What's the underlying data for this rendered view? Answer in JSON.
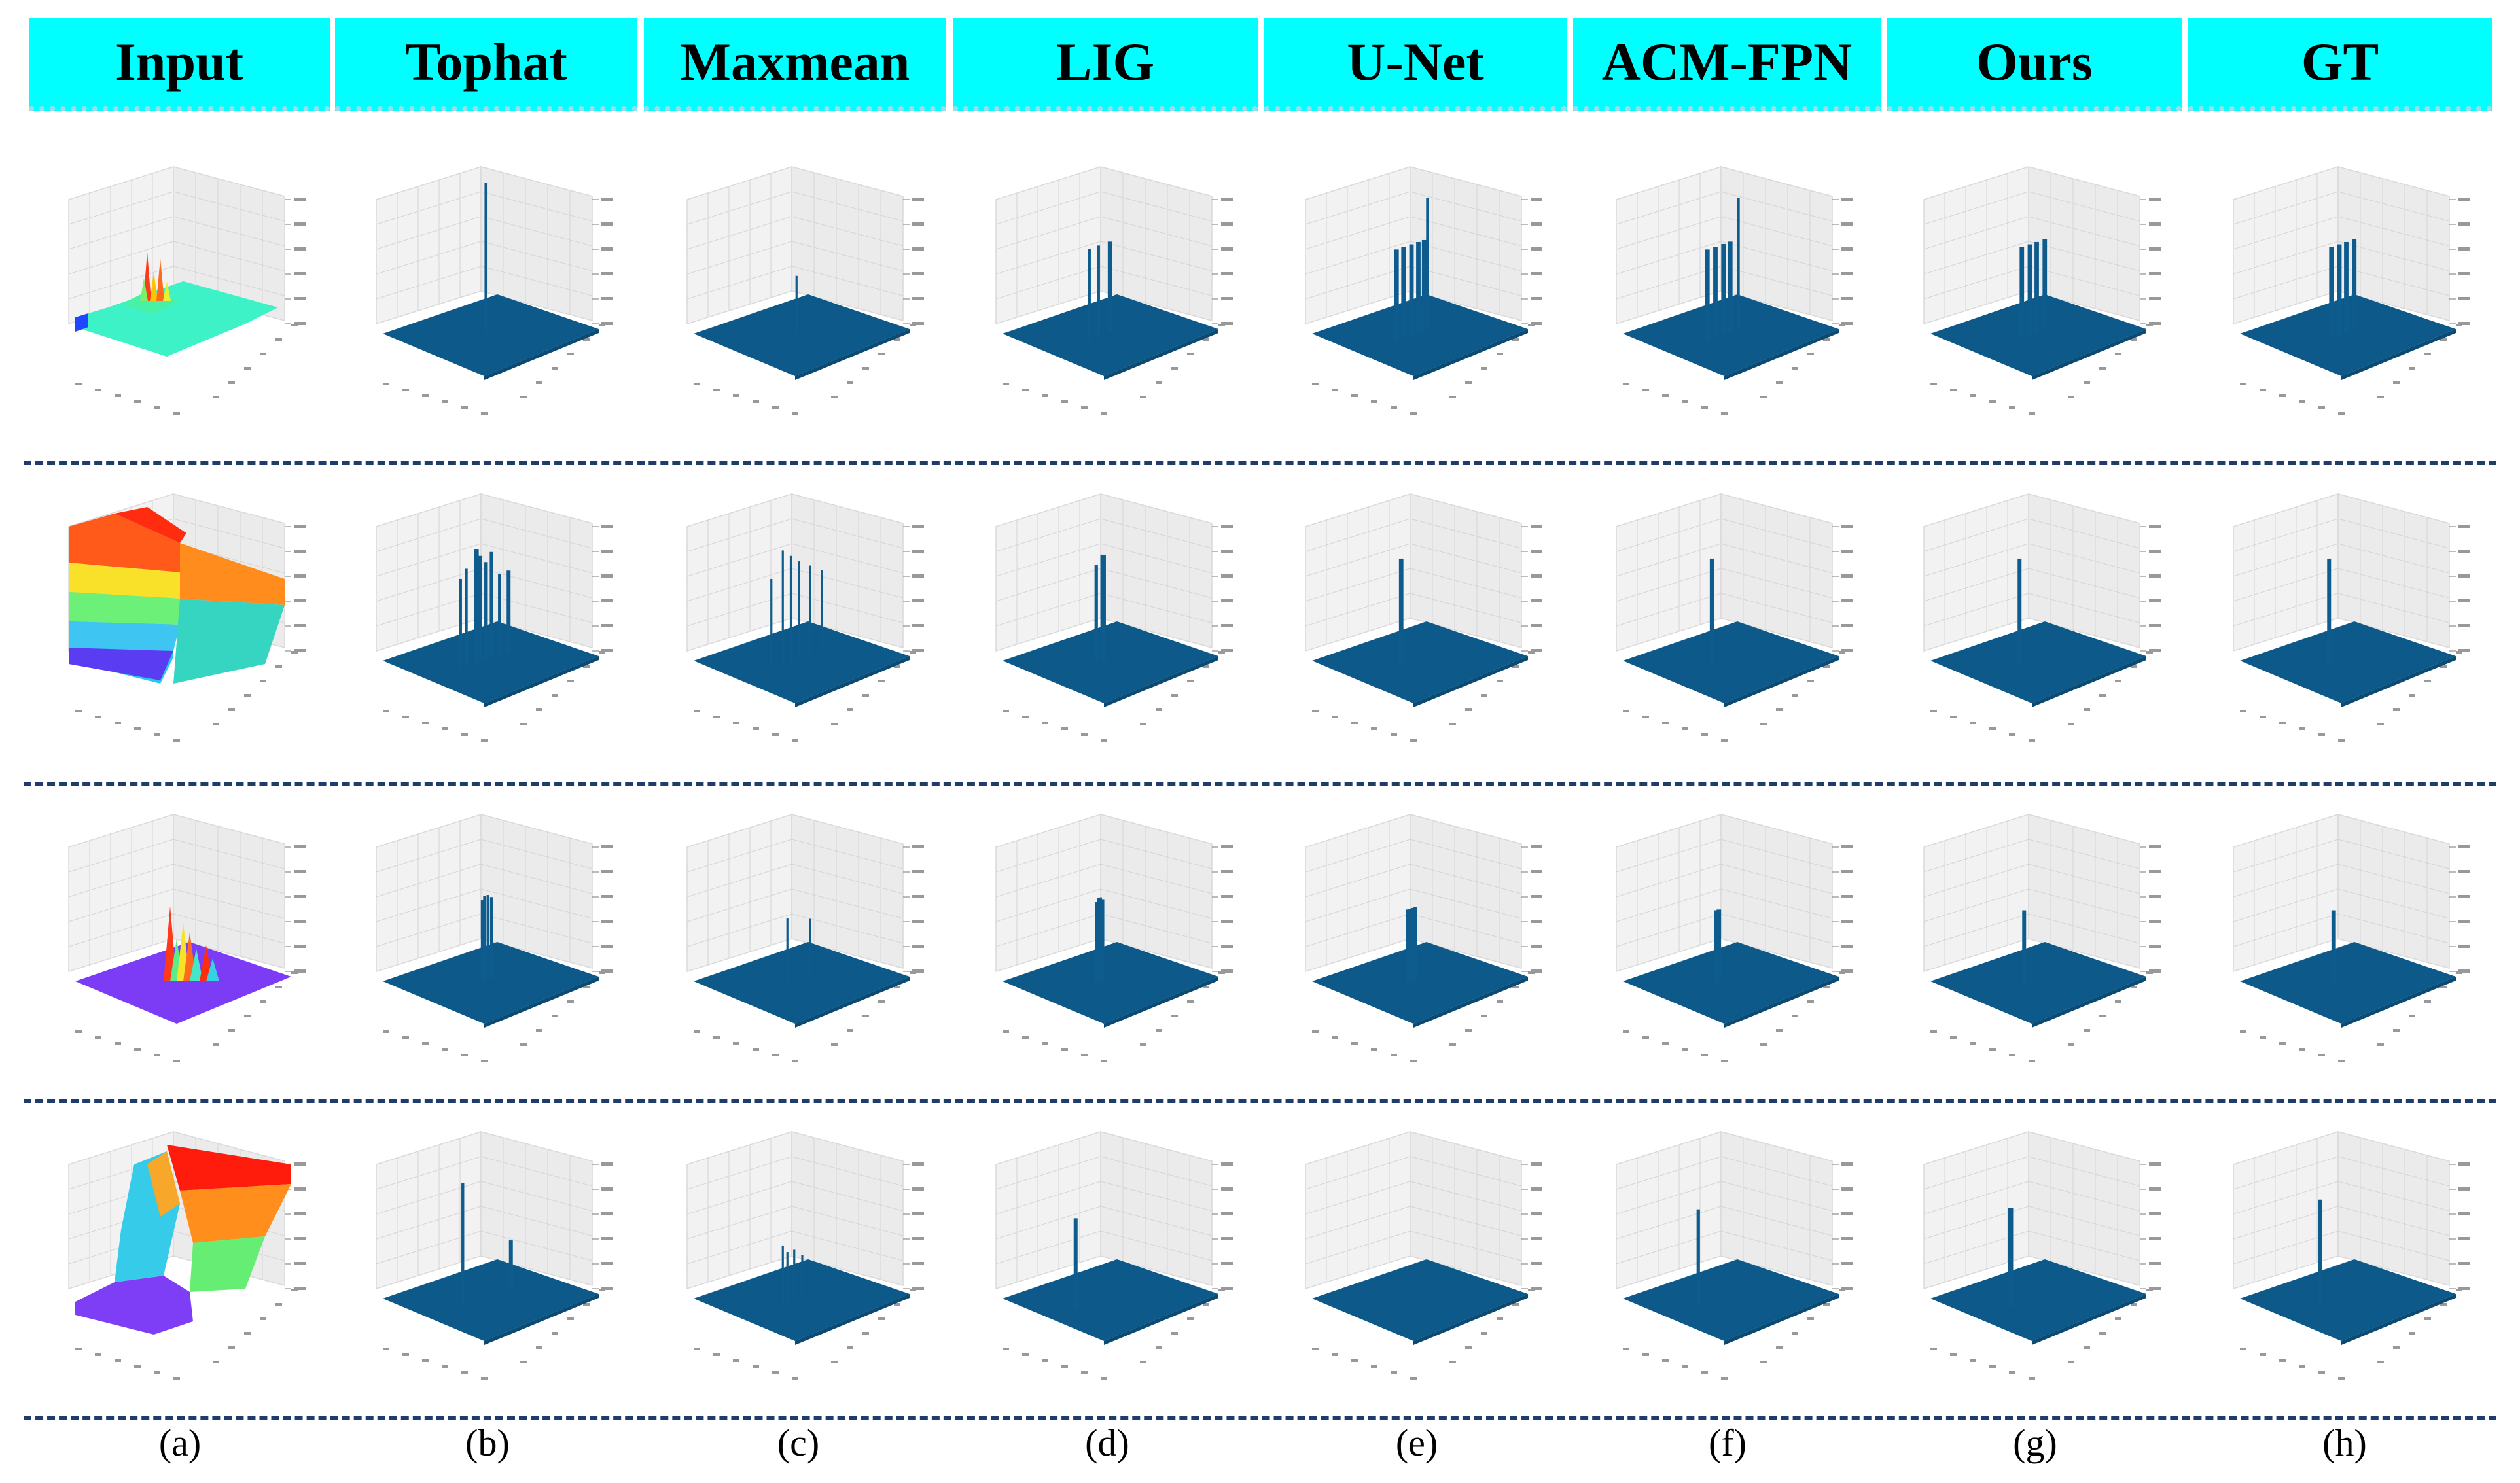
{
  "columns": [
    {
      "header": "Input",
      "label": "(a)"
    },
    {
      "header": "Tophat",
      "label": "(b)"
    },
    {
      "header": "Maxmean",
      "label": "(c)"
    },
    {
      "header": "LIG",
      "label": "(d)"
    },
    {
      "header": "U-Net",
      "label": "(e)"
    },
    {
      "header": "ACM-FPN",
      "label": "(f)"
    },
    {
      "header": "Ours",
      "label": "(g)"
    },
    {
      "header": "GT",
      "label": "(h)"
    }
  ],
  "colors": {
    "header_bg": "#00ffff",
    "plane": "#0d5a8a",
    "spike": "#0e5c8e",
    "separator": "#1f3c6e"
  },
  "rows": [
    {
      "input_style": "flat-with-central-peaks",
      "spikes": {
        "Tophat": [
          [
            0.5,
            0.92,
            0.2
          ]
        ],
        "Maxmean": [
          [
            0.5,
            0.35,
            0.15
          ]
        ],
        "LIG": [
          [
            0.36,
            0.55,
            0.3
          ],
          [
            0.44,
            0.55,
            0.3
          ],
          [
            0.54,
            0.55,
            0.6
          ]
        ],
        "U-Net": [
          [
            0.34,
            0.55,
            0.6
          ],
          [
            0.4,
            0.55,
            0.6
          ],
          [
            0.47,
            0.55,
            0.6
          ],
          [
            0.53,
            0.55,
            0.6
          ],
          [
            0.58,
            0.55,
            0.6
          ],
          [
            0.61,
            0.8,
            0.3
          ]
        ],
        "ACM-FPN": [
          [
            0.34,
            0.55,
            0.6
          ],
          [
            0.41,
            0.55,
            0.6
          ],
          [
            0.48,
            0.55,
            0.6
          ],
          [
            0.54,
            0.55,
            0.6
          ],
          [
            0.61,
            0.8,
            0.3
          ]
        ],
        "Ours": [
          [
            0.4,
            0.55,
            0.6
          ],
          [
            0.47,
            0.55,
            0.6
          ],
          [
            0.53,
            0.55,
            0.6
          ],
          [
            0.6,
            0.55,
            0.6
          ]
        ],
        "GT": [
          [
            0.4,
            0.55,
            0.6
          ],
          [
            0.47,
            0.55,
            0.6
          ],
          [
            0.53,
            0.55,
            0.6
          ],
          [
            0.6,
            0.55,
            0.6
          ]
        ]
      }
    },
    {
      "input_style": "rising-ridge",
      "spikes": {
        "Tophat": [
          [
            0.28,
            0.55,
            0.3
          ],
          [
            0.33,
            0.6,
            0.3
          ],
          [
            0.42,
            0.7,
            0.6
          ],
          [
            0.45,
            0.65,
            0.6
          ],
          [
            0.5,
            0.6,
            0.3
          ],
          [
            0.55,
            0.65,
            0.4
          ],
          [
            0.62,
            0.5,
            0.3
          ],
          [
            0.7,
            0.5,
            0.5
          ]
        ],
        "Maxmean": [
          [
            0.28,
            0.55,
            0.15
          ],
          [
            0.38,
            0.7,
            0.15
          ],
          [
            0.45,
            0.65,
            0.15
          ],
          [
            0.52,
            0.6,
            0.15
          ],
          [
            0.62,
            0.55,
            0.15
          ],
          [
            0.72,
            0.5,
            0.15
          ]
        ],
        "LIG": [
          [
            0.42,
            0.6,
            0.4
          ],
          [
            0.48,
            0.65,
            0.8
          ]
        ],
        "U-Net": [
          [
            0.38,
            0.65,
            0.6
          ]
        ],
        "ACM-FPN": [
          [
            0.38,
            0.65,
            0.6
          ]
        ],
        "Ours": [
          [
            0.38,
            0.65,
            0.5
          ]
        ],
        "GT": [
          [
            0.38,
            0.65,
            0.5
          ]
        ]
      }
    },
    {
      "input_style": "flat-with-cluster",
      "spikes": {
        "Tophat": [
          [
            0.47,
            0.5,
            0.3
          ],
          [
            0.49,
            0.52,
            0.3
          ],
          [
            0.52,
            0.52,
            0.3
          ],
          [
            0.55,
            0.5,
            0.3
          ]
        ],
        "Maxmean": [
          [
            0.42,
            0.4,
            0.15
          ],
          [
            0.62,
            0.35,
            0.15
          ]
        ],
        "LIG": [
          [
            0.42,
            0.5,
            0.2
          ],
          [
            0.44,
            0.52,
            0.2
          ],
          [
            0.46,
            0.52,
            0.2
          ],
          [
            0.48,
            0.5,
            0.2
          ]
        ],
        "U-Net": [
          [
            0.44,
            0.45,
            0.5
          ],
          [
            0.46,
            0.45,
            0.5
          ],
          [
            0.48,
            0.45,
            0.5
          ],
          [
            0.5,
            0.45,
            0.5
          ]
        ],
        "ACM-FPN": [
          [
            0.42,
            0.45,
            0.6
          ],
          [
            0.44,
            0.45,
            0.6
          ]
        ],
        "Ours": [
          [
            0.42,
            0.45,
            0.5
          ]
        ],
        "GT": [
          [
            0.42,
            0.45,
            0.6
          ]
        ]
      }
    },
    {
      "input_style": "step-plateau",
      "spikes": {
        "Tophat": [
          [
            0.3,
            0.75,
            0.3
          ],
          [
            0.72,
            0.3,
            0.5
          ]
        ],
        "Maxmean": [
          [
            0.38,
            0.35,
            0.15
          ],
          [
            0.42,
            0.3,
            0.15
          ],
          [
            0.48,
            0.3,
            0.15
          ],
          [
            0.55,
            0.25,
            0.15
          ]
        ],
        "LIG": [
          [
            0.24,
            0.55,
            0.5
          ]
        ],
        "U-Net": [],
        "ACM-FPN": [
          [
            0.26,
            0.6,
            0.4
          ]
        ],
        "Ours": [
          [
            0.3,
            0.6,
            0.8
          ]
        ],
        "GT": [
          [
            0.3,
            0.65,
            0.5
          ]
        ]
      }
    }
  ]
}
